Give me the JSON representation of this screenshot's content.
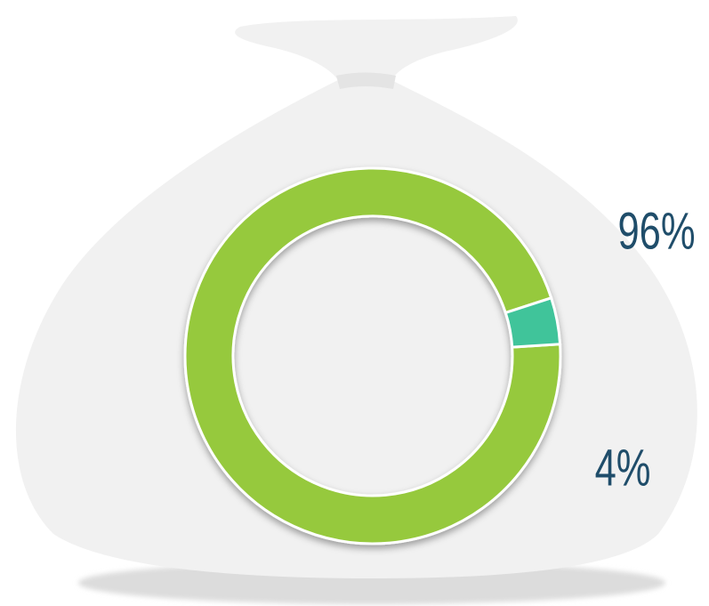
{
  "chart_data": {
    "type": "donut",
    "values": [
      96,
      4
    ],
    "value_labels": [
      "96%",
      "4%"
    ],
    "colors": [
      "#96c93d",
      "#40c49a"
    ]
  }
}
